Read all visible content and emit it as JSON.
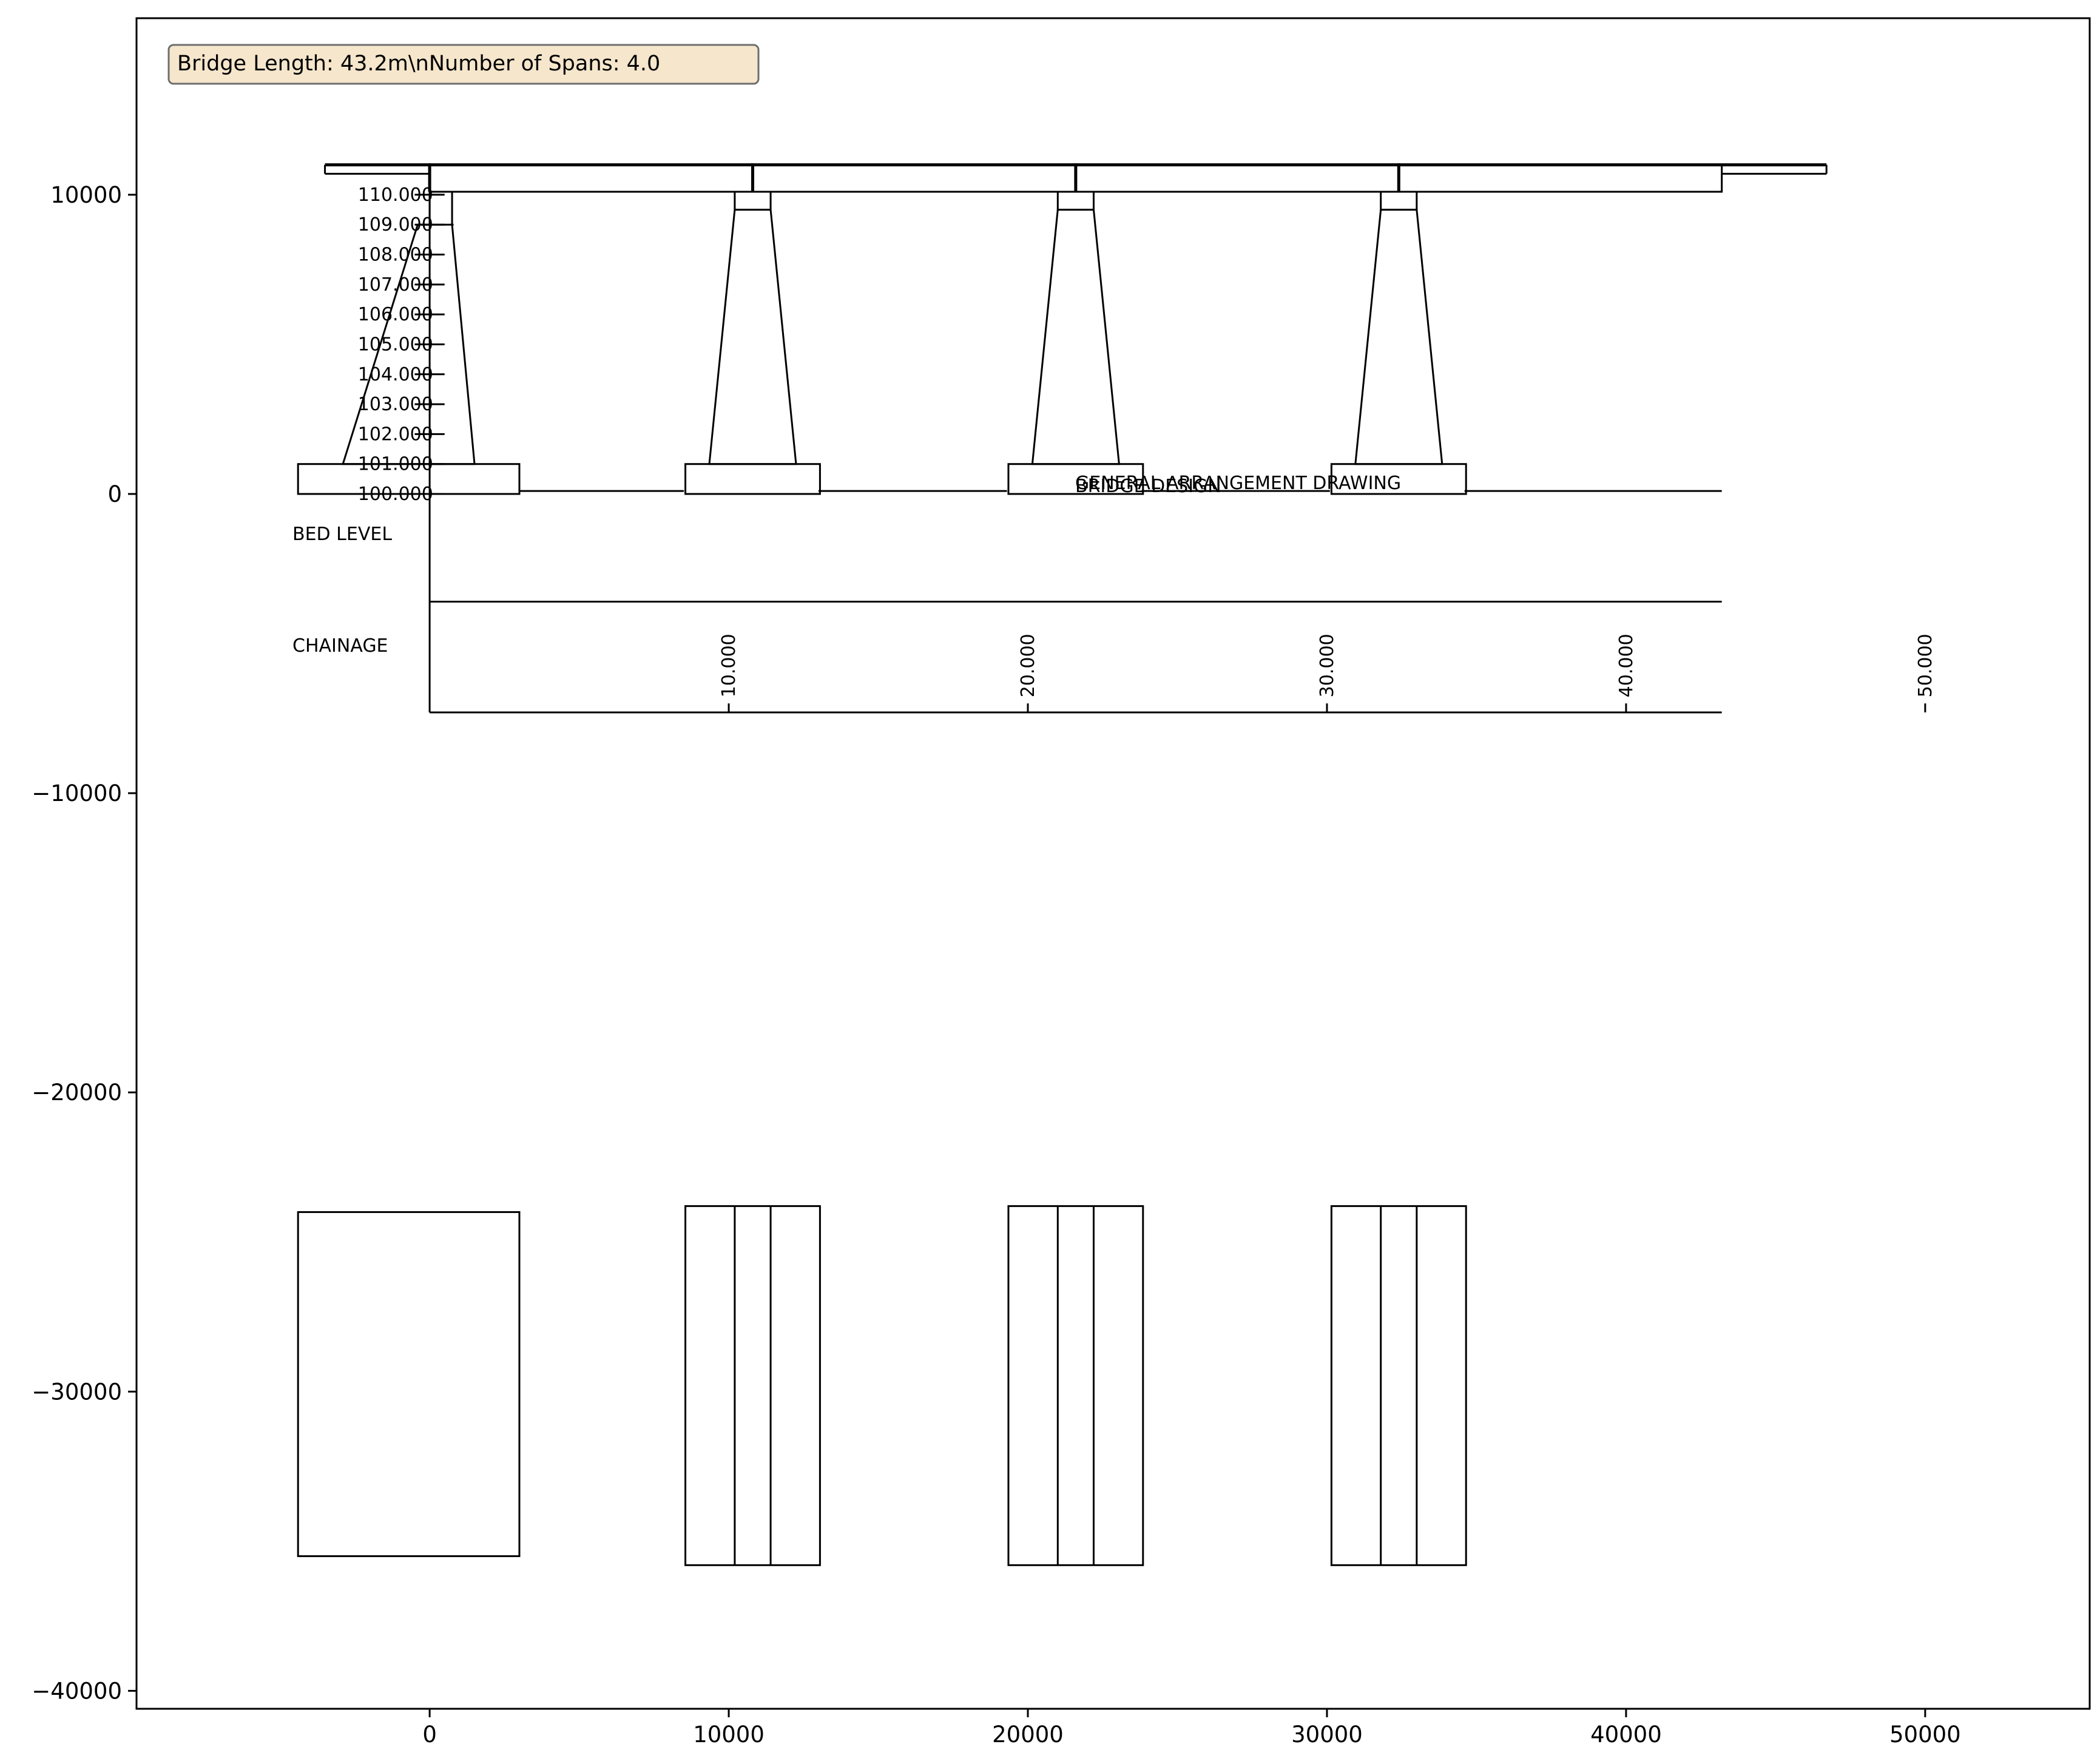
{
  "figure": {
    "info_box_text": "Bridge Length: 43.2m\\nNumber of Spans: 4.0",
    "info_box_fill": "#f5e6cc",
    "title_overlay_1": "GENERAL ARRANGEMENT DRAWING",
    "title_overlay_2": "BRIDGE DESIGN",
    "bed_level_label": "BED LEVEL",
    "chainage_label": "CHAINAGE"
  },
  "axes": {
    "xlim": [
      -9800,
      55500
    ],
    "ylim": [
      -40600,
      15900
    ],
    "x_ticks": [
      0,
      10000,
      20000,
      30000,
      40000,
      50000
    ],
    "x_tick_labels": [
      "0",
      "10000",
      "20000",
      "30000",
      "40000",
      "50000"
    ],
    "y_ticks": [
      10000,
      0,
      -10000,
      -20000,
      -30000,
      -40000
    ],
    "y_tick_labels": [
      "10000",
      "0",
      "−10000",
      "−20000",
      "−30000",
      "−40000"
    ]
  },
  "level_scale": {
    "labels": [
      "110.000",
      "109.000",
      "108.000",
      "107.000",
      "106.000",
      "105.000",
      "104.000",
      "103.000",
      "102.000",
      "101.000",
      "100.000"
    ]
  },
  "chainage": {
    "values": [
      10000,
      20000,
      30000,
      40000,
      50000
    ],
    "labels": [
      "10.000",
      "20.000",
      "30.000",
      "40.000",
      "50.000"
    ]
  },
  "bridge": {
    "span_joints_x": [
      0,
      10800,
      21600,
      32400,
      43200
    ],
    "pier_centers_x": [
      10800,
      21600,
      32400
    ],
    "deck_top_y": 11000,
    "deck_soffit_y": 10100,
    "abutment_left": {
      "footing_x": [
        -4400,
        3000
      ],
      "footing_y": [
        0,
        1000
      ],
      "plan_y": [
        -35500,
        -24000
      ]
    },
    "pier_plan_y": [
      -35800,
      -23800
    ]
  }
}
